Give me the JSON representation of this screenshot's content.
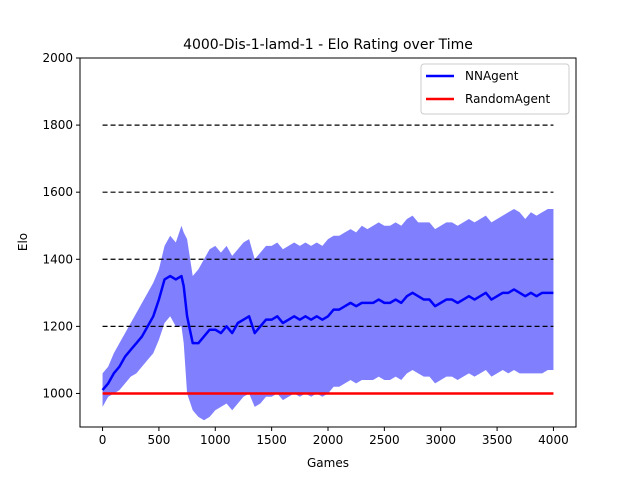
{
  "chart_data": {
    "type": "line",
    "title": "4000-Dis-1-lamd-1 - Elo Rating over Time",
    "xlabel": "Games",
    "ylabel": "Elo",
    "xlim": [
      -200,
      4200
    ],
    "ylim": [
      900,
      2000
    ],
    "xticks": [
      0,
      500,
      1000,
      1500,
      2000,
      2500,
      3000,
      3500,
      4000
    ],
    "yticks": [
      1000,
      1200,
      1400,
      1600,
      1800,
      2000
    ],
    "reference_lines": [
      1200,
      1400,
      1600,
      1800
    ],
    "legend_placement": "top-right",
    "grid": false,
    "series": [
      {
        "name": "NNAgent",
        "color": "#0000ff",
        "band_color": "#8080ff",
        "x": [
          0,
          50,
          100,
          150,
          200,
          250,
          300,
          350,
          400,
          450,
          500,
          550,
          600,
          650,
          700,
          720,
          750,
          800,
          850,
          900,
          950,
          1000,
          1050,
          1100,
          1150,
          1200,
          1250,
          1300,
          1350,
          1400,
          1450,
          1500,
          1550,
          1600,
          1650,
          1700,
          1750,
          1800,
          1850,
          1900,
          1950,
          2000,
          2050,
          2100,
          2150,
          2200,
          2250,
          2300,
          2350,
          2400,
          2450,
          2500,
          2550,
          2600,
          2650,
          2700,
          2750,
          2800,
          2850,
          2900,
          2950,
          3000,
          3050,
          3100,
          3150,
          3200,
          3250,
          3300,
          3350,
          3400,
          3450,
          3500,
          3550,
          3600,
          3650,
          3700,
          3750,
          3800,
          3850,
          3900,
          3950,
          4000
        ],
        "y": [
          1010,
          1030,
          1060,
          1080,
          1110,
          1130,
          1150,
          1170,
          1200,
          1230,
          1280,
          1340,
          1350,
          1340,
          1350,
          1320,
          1230,
          1150,
          1150,
          1170,
          1190,
          1190,
          1180,
          1200,
          1180,
          1210,
          1220,
          1230,
          1180,
          1200,
          1220,
          1220,
          1230,
          1210,
          1220,
          1230,
          1220,
          1230,
          1220,
          1230,
          1220,
          1230,
          1250,
          1250,
          1260,
          1270,
          1260,
          1270,
          1270,
          1270,
          1280,
          1270,
          1270,
          1280,
          1270,
          1290,
          1300,
          1290,
          1280,
          1280,
          1260,
          1270,
          1280,
          1280,
          1270,
          1280,
          1290,
          1280,
          1290,
          1300,
          1280,
          1290,
          1300,
          1300,
          1310,
          1300,
          1290,
          1300,
          1290,
          1300,
          1300,
          1300
        ],
        "lower": [
          960,
          990,
          1000,
          1010,
          1030,
          1050,
          1060,
          1080,
          1100,
          1120,
          1160,
          1210,
          1230,
          1200,
          1200,
          1150,
          1000,
          950,
          930,
          920,
          930,
          950,
          960,
          970,
          950,
          970,
          990,
          1000,
          960,
          970,
          990,
          990,
          1000,
          980,
          990,
          1000,
          990,
          1000,
          990,
          1000,
          990,
          1000,
          1020,
          1020,
          1030,
          1040,
          1030,
          1040,
          1040,
          1040,
          1050,
          1040,
          1040,
          1050,
          1040,
          1060,
          1070,
          1060,
          1050,
          1050,
          1030,
          1040,
          1050,
          1050,
          1040,
          1050,
          1060,
          1050,
          1060,
          1070,
          1050,
          1060,
          1070,
          1060,
          1070,
          1060,
          1060,
          1060,
          1060,
          1060,
          1070,
          1070
        ],
        "upper": [
          1060,
          1080,
          1120,
          1150,
          1180,
          1210,
          1240,
          1270,
          1300,
          1330,
          1370,
          1440,
          1470,
          1450,
          1500,
          1480,
          1460,
          1350,
          1370,
          1400,
          1430,
          1440,
          1420,
          1440,
          1410,
          1430,
          1450,
          1460,
          1400,
          1420,
          1440,
          1440,
          1450,
          1430,
          1440,
          1450,
          1440,
          1450,
          1440,
          1450,
          1440,
          1460,
          1470,
          1470,
          1480,
          1490,
          1480,
          1500,
          1490,
          1500,
          1510,
          1500,
          1500,
          1510,
          1500,
          1520,
          1530,
          1510,
          1510,
          1510,
          1490,
          1500,
          1510,
          1510,
          1500,
          1510,
          1520,
          1510,
          1520,
          1530,
          1510,
          1520,
          1530,
          1540,
          1550,
          1540,
          1520,
          1540,
          1530,
          1540,
          1550,
          1550
        ]
      },
      {
        "name": "RandomAgent",
        "color": "#ff0000",
        "x": [
          0,
          4000
        ],
        "y": [
          1000,
          1000
        ]
      }
    ]
  }
}
